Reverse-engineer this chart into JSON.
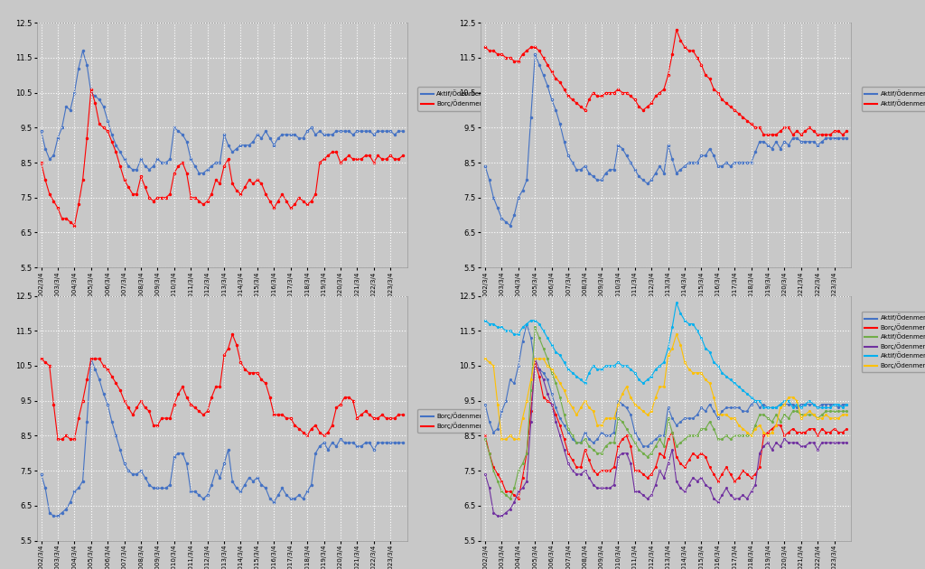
{
  "ylim": [
    5.5,
    12.5
  ],
  "yticks": [
    5.5,
    6.5,
    7.5,
    8.5,
    9.5,
    10.5,
    11.5,
    12.5
  ],
  "background_color": "#c8c8c8",
  "grid_color": "#ffffff",
  "legend_labels": {
    "aktif_geneli": "Aktif/Ödenmemiş(Geneli)",
    "borc_geneli": "Borç/Ödenmemiş(Geneli)",
    "aktif_ozel": "Aktif/Ödenmemiş(Özel)",
    "aktif_kamu": "Aktif/Ödenmemiş(Kamu)",
    "borc_ozel": "Borç/Ödenmemiş(Özel)",
    "borc_kamu": "Borç/Ödenmemiş(Kamu)"
  },
  "colors": {
    "aktif_geneli": "#4472c4",
    "borc_geneli": "#ff0000",
    "aktif_ozel": "#4472c4",
    "aktif_kamu": "#ff0000",
    "borc_ozel": "#4472c4",
    "borc_kamu": "#ff0000",
    "br4_aktif_geneli": "#4472c4",
    "br4_borc_geneli": "#ff0000",
    "br4_aktif_ozel": "#70ad47",
    "br4_borc_ozel": "#7030a0",
    "br4_aktif_kamu": "#00b0f0",
    "br4_borc_kamu": "#ffc000"
  },
  "aktif_geneli": [
    9.4,
    8.9,
    8.6,
    8.7,
    9.2,
    9.5,
    10.1,
    10.0,
    10.5,
    11.2,
    11.7,
    11.3,
    10.5,
    10.4,
    10.3,
    10.1,
    9.7,
    9.3,
    9.0,
    8.8,
    8.6,
    8.4,
    8.3,
    8.3,
    8.6,
    8.4,
    8.3,
    8.4,
    8.6,
    8.5,
    8.5,
    8.6,
    9.5,
    9.4,
    9.3,
    9.1,
    8.6,
    8.4,
    8.2,
    8.2,
    8.3,
    8.4,
    8.5,
    8.5,
    9.3,
    9.0,
    8.8,
    8.9,
    9.0,
    9.0,
    9.0,
    9.1,
    9.3,
    9.2,
    9.4,
    9.2,
    9.0,
    9.2,
    9.3,
    9.3,
    9.3,
    9.3,
    9.2,
    9.2,
    9.4,
    9.5,
    9.3,
    9.4,
    9.3,
    9.3,
    9.3,
    9.4,
    9.4,
    9.4,
    9.4,
    9.3,
    9.4,
    9.4,
    9.4,
    9.4,
    9.3,
    9.4,
    9.4,
    9.4,
    9.4,
    9.3,
    9.4,
    9.4
  ],
  "borc_geneli": [
    8.5,
    8.0,
    7.6,
    7.4,
    7.2,
    6.9,
    6.9,
    6.8,
    6.7,
    7.3,
    8.0,
    9.2,
    10.6,
    10.2,
    9.6,
    9.5,
    9.4,
    9.1,
    8.8,
    8.4,
    8.0,
    7.8,
    7.6,
    7.6,
    8.1,
    7.8,
    7.5,
    7.4,
    7.5,
    7.5,
    7.5,
    7.6,
    8.2,
    8.4,
    8.5,
    8.2,
    7.5,
    7.5,
    7.4,
    7.3,
    7.4,
    7.6,
    8.0,
    7.9,
    8.4,
    8.6,
    7.9,
    7.7,
    7.6,
    7.8,
    8.0,
    7.9,
    8.0,
    7.9,
    7.6,
    7.4,
    7.2,
    7.4,
    7.6,
    7.4,
    7.2,
    7.3,
    7.5,
    7.4,
    7.3,
    7.4,
    7.6,
    8.5,
    8.6,
    8.7,
    8.8,
    8.8,
    8.5,
    8.6,
    8.7,
    8.6,
    8.6,
    8.6,
    8.7,
    8.7,
    8.5,
    8.7,
    8.6,
    8.6,
    8.7,
    8.6,
    8.6,
    8.7
  ],
  "aktif_ozel": [
    8.4,
    8.0,
    7.5,
    7.2,
    6.9,
    6.8,
    6.7,
    7.0,
    7.5,
    7.7,
    8.0,
    9.8,
    11.6,
    11.3,
    11.0,
    10.7,
    10.3,
    10.0,
    9.6,
    9.1,
    8.7,
    8.5,
    8.3,
    8.3,
    8.4,
    8.2,
    8.1,
    8.0,
    8.0,
    8.2,
    8.3,
    8.3,
    9.0,
    8.9,
    8.7,
    8.5,
    8.3,
    8.1,
    8.0,
    7.9,
    8.0,
    8.2,
    8.4,
    8.2,
    9.0,
    8.6,
    8.2,
    8.3,
    8.4,
    8.5,
    8.5,
    8.5,
    8.7,
    8.7,
    8.9,
    8.7,
    8.4,
    8.4,
    8.5,
    8.4,
    8.5,
    8.5,
    8.5,
    8.5,
    8.5,
    8.8,
    9.1,
    9.1,
    9.0,
    8.9,
    9.1,
    8.9,
    9.1,
    9.0,
    9.2,
    9.2,
    9.1,
    9.1,
    9.1,
    9.1,
    9.0,
    9.1,
    9.2,
    9.2,
    9.2,
    9.2,
    9.2,
    9.2
  ],
  "aktif_kamu": [
    11.8,
    11.7,
    11.7,
    11.6,
    11.6,
    11.5,
    11.5,
    11.4,
    11.4,
    11.6,
    11.7,
    11.8,
    11.8,
    11.7,
    11.5,
    11.3,
    11.1,
    10.9,
    10.8,
    10.6,
    10.4,
    10.3,
    10.2,
    10.1,
    10.0,
    10.3,
    10.5,
    10.4,
    10.4,
    10.5,
    10.5,
    10.5,
    10.6,
    10.5,
    10.5,
    10.4,
    10.3,
    10.1,
    10.0,
    10.1,
    10.2,
    10.4,
    10.5,
    10.6,
    11.0,
    11.6,
    12.3,
    12.0,
    11.8,
    11.7,
    11.7,
    11.5,
    11.3,
    11.0,
    10.9,
    10.6,
    10.5,
    10.3,
    10.2,
    10.1,
    10.0,
    9.9,
    9.8,
    9.7,
    9.6,
    9.5,
    9.5,
    9.3,
    9.3,
    9.3,
    9.3,
    9.4,
    9.5,
    9.5,
    9.3,
    9.4,
    9.3,
    9.4,
    9.5,
    9.4,
    9.3,
    9.3,
    9.3,
    9.3,
    9.4,
    9.4,
    9.3,
    9.4
  ],
  "borc_ozel": [
    7.4,
    7.0,
    6.3,
    6.2,
    6.2,
    6.3,
    6.4,
    6.6,
    6.9,
    7.0,
    7.2,
    8.9,
    10.7,
    10.4,
    10.1,
    9.7,
    9.4,
    8.9,
    8.5,
    8.1,
    7.7,
    7.5,
    7.4,
    7.4,
    7.5,
    7.3,
    7.1,
    7.0,
    7.0,
    7.0,
    7.0,
    7.1,
    7.9,
    8.0,
    8.0,
    7.7,
    6.9,
    6.9,
    6.8,
    6.7,
    6.8,
    7.1,
    7.5,
    7.3,
    7.7,
    8.1,
    7.2,
    7.0,
    6.9,
    7.1,
    7.3,
    7.2,
    7.3,
    7.1,
    7.0,
    6.7,
    6.6,
    6.8,
    7.0,
    6.8,
    6.7,
    6.7,
    6.8,
    6.7,
    6.9,
    7.1,
    8.0,
    8.2,
    8.3,
    8.1,
    8.3,
    8.2,
    8.4,
    8.3,
    8.3,
    8.3,
    8.2,
    8.2,
    8.3,
    8.3,
    8.1,
    8.3,
    8.3,
    8.3,
    8.3,
    8.3,
    8.3,
    8.3
  ],
  "borc_kamu": [
    10.7,
    10.6,
    10.5,
    9.4,
    8.4,
    8.4,
    8.5,
    8.4,
    8.4,
    9.0,
    9.5,
    10.1,
    10.7,
    10.7,
    10.7,
    10.5,
    10.4,
    10.2,
    10.0,
    9.8,
    9.5,
    9.3,
    9.1,
    9.3,
    9.5,
    9.3,
    9.2,
    8.8,
    8.8,
    9.0,
    9.0,
    9.0,
    9.4,
    9.7,
    9.9,
    9.6,
    9.4,
    9.3,
    9.2,
    9.1,
    9.2,
    9.6,
    9.9,
    9.9,
    10.8,
    11.0,
    11.4,
    11.1,
    10.6,
    10.4,
    10.3,
    10.3,
    10.3,
    10.1,
    10.0,
    9.6,
    9.1,
    9.1,
    9.1,
    9.0,
    9.0,
    8.8,
    8.7,
    8.6,
    8.5,
    8.7,
    8.8,
    8.6,
    8.5,
    8.6,
    8.8,
    9.3,
    9.4,
    9.6,
    9.6,
    9.5,
    9.0,
    9.1,
    9.2,
    9.1,
    9.0,
    9.0,
    9.1,
    9.0,
    9.0,
    9.0,
    9.1,
    9.1
  ]
}
